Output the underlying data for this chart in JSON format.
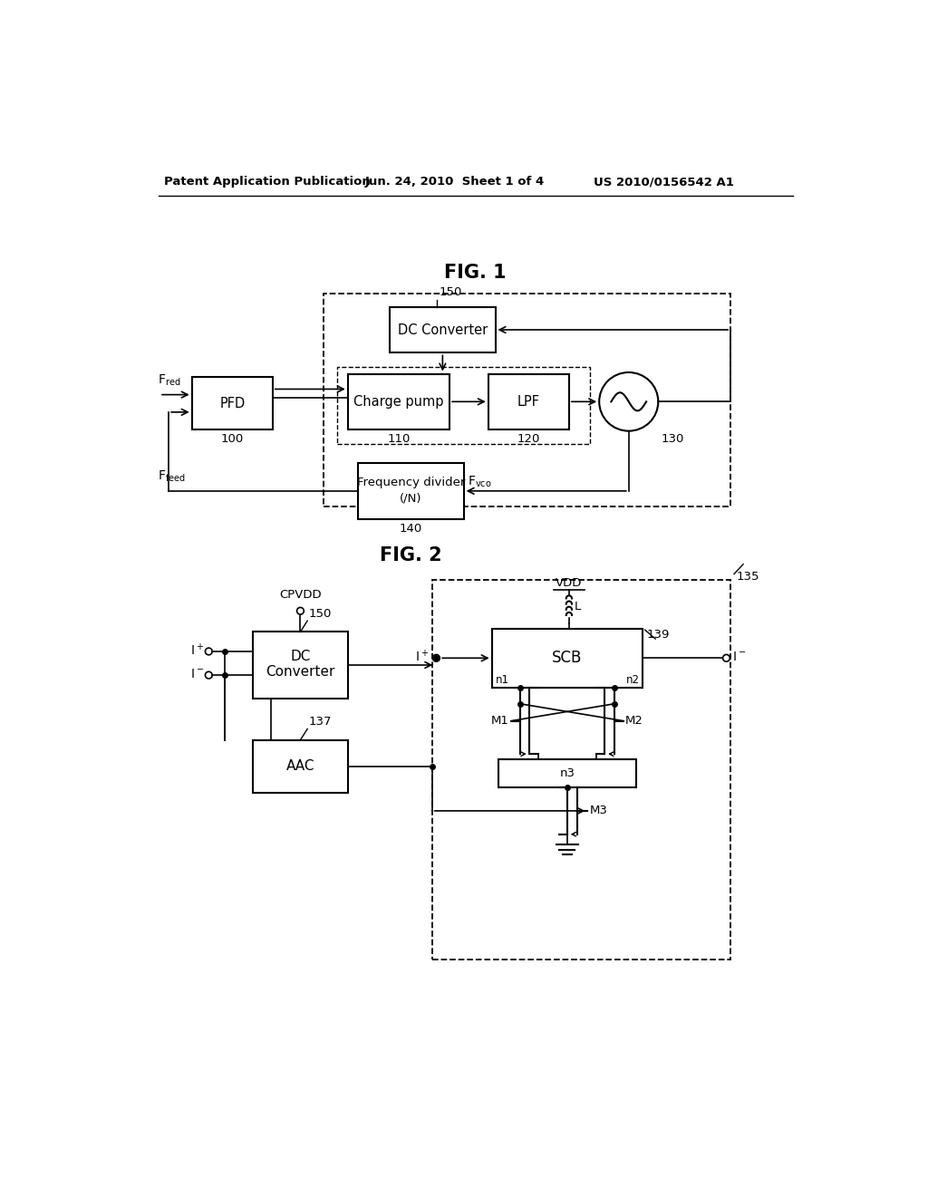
{
  "bg_color": "#ffffff",
  "header_left": "Patent Application Publication",
  "header_mid": "Jun. 24, 2010  Sheet 1 of 4",
  "header_right": "US 2010/0156542 A1",
  "fig1_title": "FIG. 1",
  "fig2_title": "FIG. 2"
}
